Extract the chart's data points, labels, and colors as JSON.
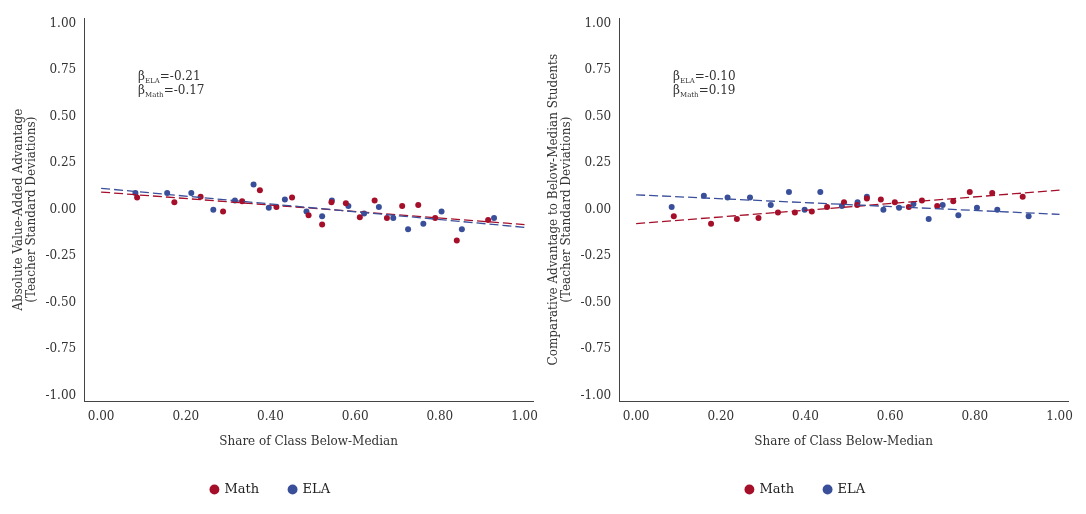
{
  "chart_data": [
    {
      "type": "scatter",
      "xlabel": "Share of Class Below-Median",
      "ylabel": "Absolute Value-Added Advantage\n(Teacher Standard Deviations)",
      "annotations": [
        "β$_{ELA}$=-0.21",
        "β$_{Math}$=-0.17"
      ],
      "xlim": [
        -0.04,
        1.02
      ],
      "ylim": [
        -1.03,
        1.03
      ],
      "xticks": [
        {
          "value": 0,
          "label": "0.00"
        },
        {
          "value": 0.2,
          "label": "0.20"
        },
        {
          "value": 0.4,
          "label": "0.40"
        },
        {
          "value": 0.6,
          "label": "0.60"
        },
        {
          "value": 0.8,
          "label": "0.80"
        },
        {
          "value": 1,
          "label": "1.00"
        }
      ],
      "yticks": [
        {
          "value": -1,
          "label": "-1.00"
        },
        {
          "value": -0.75,
          "label": "-0.75"
        },
        {
          "value": -0.5,
          "label": "-0.50"
        },
        {
          "value": -0.25,
          "label": "-0.25"
        },
        {
          "value": 0,
          "label": "0.00"
        },
        {
          "value": 0.25,
          "label": "0.25"
        },
        {
          "value": 0.5,
          "label": "0.50"
        },
        {
          "value": 0.75,
          "label": "0.75"
        },
        {
          "value": 1,
          "label": "1.00"
        }
      ],
      "legend": "bottom",
      "series": [
        {
          "name": "ELA",
          "marker": "circle",
          "color": "#3a4f9a",
          "x": [
            0.081,
            0.156,
            0.213,
            0.265,
            0.316,
            0.36,
            0.396,
            0.434,
            0.485,
            0.522,
            0.545,
            0.584,
            0.621,
            0.656,
            0.69,
            0.725,
            0.761,
            0.804,
            0.852,
            0.928
          ],
          "values": [
            0.09,
            0.09,
            0.09,
            0.0,
            0.05,
            0.135,
            0.01,
            0.055,
            -0.01,
            -0.035,
            0.05,
            0.02,
            -0.02,
            0.015,
            -0.045,
            -0.105,
            -0.075,
            -0.01,
            -0.105,
            -0.045
          ]
        },
        {
          "name": "Math",
          "marker": "circle",
          "color": "#a50f2a",
          "x": [
            0.085,
            0.173,
            0.235,
            0.288,
            0.333,
            0.375,
            0.414,
            0.451,
            0.49,
            0.522,
            0.544,
            0.578,
            0.611,
            0.646,
            0.675,
            0.711,
            0.749,
            0.789,
            0.84,
            0.914
          ],
          "values": [
            0.065,
            0.04,
            0.07,
            -0.01,
            0.045,
            0.105,
            0.015,
            0.065,
            -0.03,
            -0.08,
            0.04,
            0.035,
            -0.04,
            0.05,
            -0.045,
            0.02,
            0.025,
            -0.045,
            -0.165,
            -0.055
          ]
        },
        {
          "type": "line",
          "color": "#3a4f9a",
          "line_style": "dashed",
          "x": [
            0,
            1
          ],
          "values": [
            0.115,
            -0.095
          ]
        },
        {
          "type": "line",
          "color": "#a50f2a",
          "line_style": "dashed",
          "x": [
            0,
            1
          ],
          "values": [
            0.095,
            -0.08
          ]
        }
      ]
    },
    {
      "type": "scatter",
      "xlabel": "Share of Class Below-Median",
      "ylabel": "Comparative Advantage to Below-Median Students\n(Teacher Standard Deviations)",
      "annotations": [
        "β$_{ELA}$=-0.10",
        "β$_{Math}$=0.19"
      ],
      "xlim": [
        -0.04,
        1.02
      ],
      "ylim": [
        -1.03,
        1.03
      ],
      "xticks": [
        {
          "value": 0,
          "label": "0.00"
        },
        {
          "value": 0.2,
          "label": "0.20"
        },
        {
          "value": 0.4,
          "label": "0.40"
        },
        {
          "value": 0.6,
          "label": "0.60"
        },
        {
          "value": 0.8,
          "label": "0.80"
        },
        {
          "value": 1,
          "label": "1.00"
        }
      ],
      "yticks": [
        {
          "value": -1,
          "label": "-1.00"
        },
        {
          "value": -0.75,
          "label": "-0.75"
        },
        {
          "value": -0.5,
          "label": "-0.50"
        },
        {
          "value": -0.25,
          "label": "-0.25"
        },
        {
          "value": 0,
          "label": "0.00"
        },
        {
          "value": 0.25,
          "label": "0.25"
        },
        {
          "value": 0.5,
          "label": "0.50"
        },
        {
          "value": 0.75,
          "label": "0.75"
        },
        {
          "value": 1,
          "label": "1.00"
        }
      ],
      "legend": "bottom",
      "series": [
        {
          "name": "ELA",
          "marker": "circle",
          "color": "#3a4f9a",
          "x": [
            0.084,
            0.16,
            0.216,
            0.269,
            0.318,
            0.361,
            0.398,
            0.435,
            0.486,
            0.523,
            0.545,
            0.584,
            0.621,
            0.655,
            0.691,
            0.724,
            0.761,
            0.805,
            0.853,
            0.927
          ],
          "values": [
            0.015,
            0.075,
            0.065,
            0.065,
            0.025,
            0.095,
            0.0,
            0.095,
            0.02,
            0.04,
            0.07,
            0.0,
            0.01,
            0.03,
            -0.05,
            0.025,
            -0.03,
            0.01,
            0.0,
            -0.035
          ]
        },
        {
          "name": "Math",
          "marker": "circle",
          "color": "#a50f2a",
          "x": [
            0.089,
            0.177,
            0.238,
            0.289,
            0.335,
            0.375,
            0.415,
            0.451,
            0.491,
            0.522,
            0.545,
            0.578,
            0.611,
            0.644,
            0.675,
            0.711,
            0.749,
            0.788,
            0.841,
            0.913
          ],
          "values": [
            -0.035,
            -0.075,
            -0.05,
            -0.045,
            -0.015,
            -0.015,
            -0.01,
            0.015,
            0.04,
            0.025,
            0.06,
            0.055,
            0.04,
            0.015,
            0.05,
            0.02,
            0.045,
            0.095,
            0.09,
            0.07
          ]
        },
        {
          "type": "line",
          "color": "#3a4f9a",
          "line_style": "dashed",
          "x": [
            0,
            1
          ],
          "values": [
            0.08,
            -0.025
          ]
        },
        {
          "type": "line",
          "color": "#a50f2a",
          "line_style": "dashed",
          "x": [
            0,
            1
          ],
          "values": [
            -0.075,
            0.105
          ]
        }
      ]
    }
  ]
}
